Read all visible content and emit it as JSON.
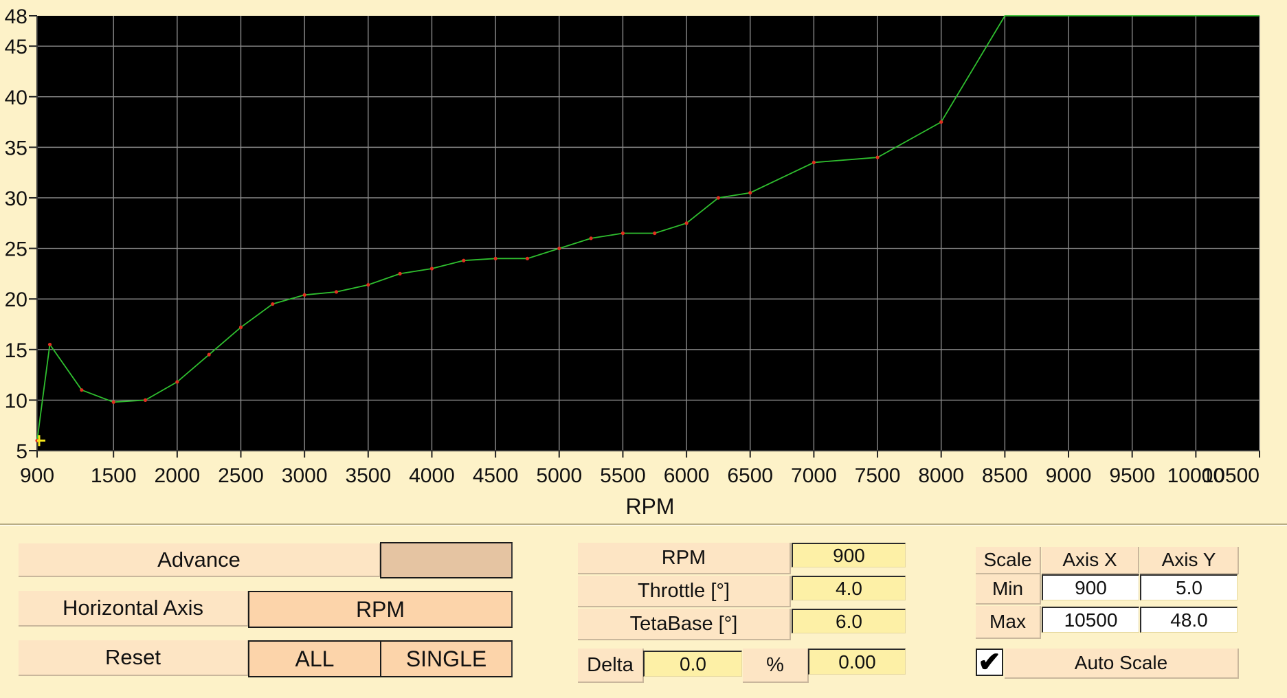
{
  "chart_data": {
    "type": "line",
    "title": "",
    "xlabel": "RPM",
    "ylabel": "",
    "xlim": [
      900,
      10500
    ],
    "ylim": [
      5,
      48
    ],
    "x_ticks": [
      900,
      1500,
      2000,
      2500,
      3000,
      3500,
      4000,
      4500,
      5000,
      5500,
      6000,
      6500,
      7000,
      7500,
      8000,
      8500,
      9000,
      9500,
      10000,
      10500
    ],
    "y_ticks": [
      5,
      10,
      15,
      20,
      25,
      30,
      35,
      40,
      45,
      48
    ],
    "grid": true,
    "background": "#000000",
    "line_color": "#2fbf2f",
    "marker_color": "#e03020",
    "cursor_color": "#f5e61a",
    "cursor": {
      "x": 900,
      "y": 6
    },
    "series": [
      {
        "x": [
          900,
          1000,
          1250,
          1500,
          1750,
          2000,
          2250,
          2500,
          2750,
          3000,
          3250,
          3500,
          3750,
          4000,
          4250,
          4500,
          4750,
          5000,
          5250,
          5500,
          5750,
          6000,
          6250,
          6500,
          7000,
          7500,
          8000,
          8500,
          9000,
          9500,
          10000,
          10500
        ],
        "y": [
          6,
          15.5,
          11,
          9.8,
          10,
          11.8,
          14.5,
          17.2,
          19.5,
          20.4,
          20.7,
          21.4,
          22.5,
          23,
          23.8,
          24,
          24,
          25,
          26,
          26.5,
          26.5,
          27.5,
          30,
          30.5,
          33.5,
          34,
          37.5,
          48,
          48,
          48,
          48,
          48
        ]
      }
    ]
  },
  "advance": {
    "label": "Advance",
    "value_label": ""
  },
  "horizontal_axis": {
    "label": "Horizontal Axis",
    "value": "RPM"
  },
  "reset": {
    "label": "Reset",
    "all": "ALL",
    "single": "SINGLE"
  },
  "readouts": {
    "rpm_label": "RPM",
    "rpm_value": "900",
    "throttle_label": "Throttle [°]",
    "throttle_value": "4.0",
    "tetabase_label": "TetaBase [°]",
    "tetabase_value": "6.0",
    "delta_label": "Delta",
    "delta_value": "0.0",
    "percent_label": "%",
    "percent_value": "0.00"
  },
  "scale": {
    "header": "Scale",
    "axis_x": "Axis X",
    "axis_y": "Axis Y",
    "min_label": "Min",
    "max_label": "Max",
    "min_x": "900",
    "min_y": "5.0",
    "max_x": "10500",
    "max_y": "48.0",
    "auto_scale_label": "Auto Scale",
    "auto_scale_checked": "✔"
  }
}
